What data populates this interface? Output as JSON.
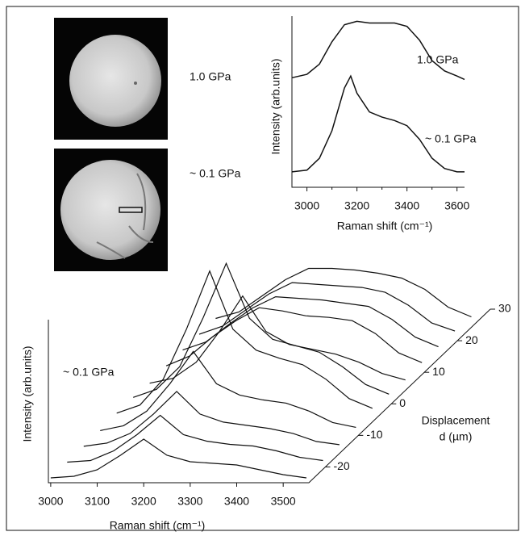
{
  "micrographs": [
    {
      "label": "1.0 GPa"
    },
    {
      "label": "~ 0.1 GPa"
    }
  ],
  "chart_data": [
    {
      "type": "line",
      "xlabel": "Raman shift (cm⁻¹)",
      "ylabel": "Intensity (arb.units)",
      "x": [
        2940,
        3000,
        3050,
        3100,
        3150,
        3175,
        3200,
        3250,
        3300,
        3350,
        3400,
        3450,
        3500,
        3550,
        3600,
        3630
      ],
      "series": [
        {
          "name": "1.0 GPa",
          "color": "#111111",
          "values": [
            0.64,
            0.66,
            0.72,
            0.85,
            0.95,
            0.96,
            0.97,
            0.96,
            0.96,
            0.96,
            0.94,
            0.86,
            0.74,
            0.68,
            0.65,
            0.63
          ]
        },
        {
          "name": "~ 0.1 GPa",
          "color": "#111111",
          "values": [
            0.09,
            0.1,
            0.17,
            0.33,
            0.58,
            0.65,
            0.55,
            0.44,
            0.41,
            0.39,
            0.36,
            0.28,
            0.17,
            0.11,
            0.09,
            0.09
          ]
        }
      ],
      "xlim": [
        2940,
        3630
      ],
      "ylim": [
        0,
        1
      ],
      "xticks": [
        3000,
        3200,
        3400,
        3600
      ],
      "xminorticks": [
        3100,
        3300,
        3500
      ]
    },
    {
      "type": "waterfall",
      "xlabel": "Raman shift (cm⁻¹)",
      "ylabel": "Intensity (arb.units)",
      "zlabel": [
        "Displacement",
        "d (µm)"
      ],
      "annotation": "~ 0.1 GPa",
      "color": "#111111",
      "x": [
        3000,
        3050,
        3100,
        3150,
        3200,
        3250,
        3300,
        3350,
        3400,
        3450,
        3500,
        3550
      ],
      "z": [
        -25,
        -20,
        -15,
        -10,
        -5,
        0,
        5,
        10,
        15,
        20,
        25
      ],
      "series": [
        {
          "values": [
            0.01,
            0.02,
            0.06,
            0.15,
            0.25,
            0.15,
            0.11,
            0.1,
            0.09,
            0.06,
            0.03,
            0.01
          ]
        },
        {
          "values": [
            0.01,
            0.02,
            0.08,
            0.18,
            0.3,
            0.18,
            0.14,
            0.12,
            0.11,
            0.08,
            0.04,
            0.02
          ]
        },
        {
          "values": [
            0.01,
            0.03,
            0.09,
            0.21,
            0.35,
            0.21,
            0.16,
            0.14,
            0.12,
            0.09,
            0.04,
            0.02
          ]
        },
        {
          "values": [
            0.01,
            0.04,
            0.13,
            0.3,
            0.5,
            0.3,
            0.23,
            0.2,
            0.18,
            0.13,
            0.06,
            0.03
          ]
        },
        {
          "values": [
            0.02,
            0.07,
            0.23,
            0.54,
            0.9,
            0.54,
            0.41,
            0.36,
            0.32,
            0.23,
            0.11,
            0.05
          ]
        },
        {
          "values": [
            0.02,
            0.07,
            0.21,
            0.51,
            0.85,
            0.51,
            0.38,
            0.34,
            0.3,
            0.21,
            0.1,
            0.04
          ]
        },
        {
          "values": [
            0.01,
            0.04,
            0.14,
            0.33,
            0.55,
            0.33,
            0.25,
            0.22,
            0.19,
            0.14,
            0.07,
            0.03
          ]
        },
        {
          "values": [
            0.02,
            0.08,
            0.2,
            0.3,
            0.38,
            0.36,
            0.33,
            0.32,
            0.3,
            0.22,
            0.1,
            0.04
          ]
        },
        {
          "values": [
            0.02,
            0.07,
            0.18,
            0.28,
            0.35,
            0.34,
            0.33,
            0.31,
            0.29,
            0.21,
            0.1,
            0.04
          ]
        },
        {
          "values": [
            0.02,
            0.07,
            0.17,
            0.27,
            0.34,
            0.33,
            0.32,
            0.31,
            0.28,
            0.2,
            0.09,
            0.04
          ]
        },
        {
          "values": [
            0.02,
            0.06,
            0.16,
            0.26,
            0.33,
            0.33,
            0.32,
            0.3,
            0.27,
            0.2,
            0.09,
            0.03
          ]
        }
      ],
      "xlim": [
        2995,
        3550
      ],
      "ylim": [
        0,
        1.05
      ],
      "zlim": [
        -25,
        30
      ],
      "xticks": [
        3000,
        3100,
        3200,
        3300,
        3400,
        3500
      ],
      "zticks": [
        -20,
        -10,
        0,
        10,
        20,
        30
      ]
    }
  ]
}
